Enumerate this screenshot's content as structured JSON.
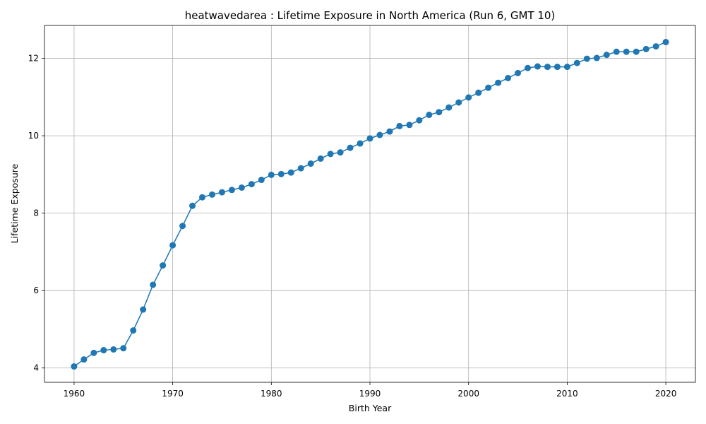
{
  "chart_data": {
    "type": "line",
    "title": "heatwavedarea : Lifetime Exposure in North America (Run 6, GMT 10)",
    "xlabel": "Birth Year",
    "ylabel": "Lifetime Exposure",
    "xlim": [
      1957,
      2023
    ],
    "ylim": [
      3.63,
      12.85
    ],
    "xticks": [
      1960,
      1970,
      1980,
      1990,
      2000,
      2010,
      2020
    ],
    "yticks": [
      4,
      6,
      8,
      10,
      12
    ],
    "grid": true,
    "color": "#1f77b4",
    "marker": "circle",
    "x": [
      1960,
      1961,
      1962,
      1963,
      1964,
      1965,
      1966,
      1967,
      1968,
      1969,
      1970,
      1971,
      1972,
      1973,
      1974,
      1975,
      1976,
      1977,
      1978,
      1979,
      1980,
      1981,
      1982,
      1983,
      1984,
      1985,
      1986,
      1987,
      1988,
      1989,
      1990,
      1991,
      1992,
      1993,
      1994,
      1995,
      1996,
      1997,
      1998,
      1999,
      2000,
      2001,
      2002,
      2003,
      2004,
      2005,
      2006,
      2007,
      2008,
      2009,
      2010,
      2011,
      2012,
      2013,
      2014,
      2015,
      2016,
      2017,
      2018,
      2019,
      2020
    ],
    "y": [
      4.04,
      4.22,
      4.39,
      4.46,
      4.48,
      4.51,
      4.97,
      5.51,
      6.15,
      6.65,
      7.17,
      7.67,
      8.19,
      8.41,
      8.48,
      8.54,
      8.6,
      8.66,
      8.75,
      8.86,
      8.99,
      9.01,
      9.05,
      9.16,
      9.28,
      9.41,
      9.53,
      9.57,
      9.69,
      9.8,
      9.93,
      10.02,
      10.11,
      10.25,
      10.28,
      10.4,
      10.54,
      10.61,
      10.73,
      10.86,
      10.99,
      11.11,
      11.24,
      11.37,
      11.49,
      11.62,
      11.75,
      11.79,
      11.78,
      11.78,
      11.78,
      11.88,
      11.99,
      12.01,
      12.09,
      12.17,
      12.17,
      12.17,
      12.24,
      12.31,
      12.42
    ]
  }
}
